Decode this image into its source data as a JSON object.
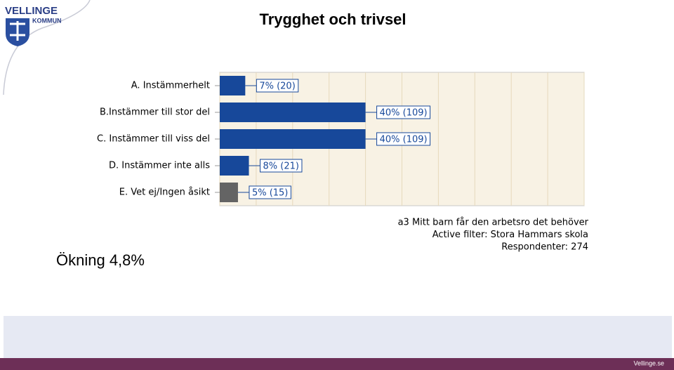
{
  "slide": {
    "logo_name": "VELLINGE",
    "logo_sub": "KOMMUN",
    "note": "Ökning 4,8%",
    "footer": "Vellinge.se"
  },
  "chart_data": {
    "type": "barh",
    "title": "Trygghet och trivsel",
    "categories": [
      "A. Instämmerhelt",
      "B.Instämmer till stor del",
      "C. Instämmer till viss del",
      "D. Instämmer inte alls",
      "E. Vet ej/Ingen åsikt"
    ],
    "values": [
      7,
      40,
      40,
      8,
      5
    ],
    "value_labels": [
      "7% (20)",
      "40% (109)",
      "40% (109)",
      "8% (21)",
      "5% (15)"
    ],
    "colors": [
      "#17489a",
      "#17489a",
      "#17489a",
      "#17489a",
      "#646464"
    ],
    "xlim": [
      0,
      100
    ],
    "xticks": [
      0,
      10,
      20,
      30,
      40,
      50,
      60,
      70,
      80,
      90,
      100
    ],
    "grid": true,
    "footnotes": [
      "a3 Mitt barn får den arbetsro det behöver",
      "Active filter: Stora Hammars skola",
      "Respondenter: 274"
    ]
  }
}
